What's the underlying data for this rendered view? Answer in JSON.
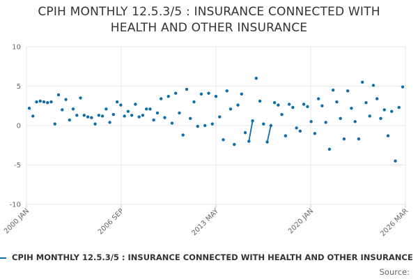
{
  "chart_data": {
    "type": "scatter",
    "title_lines": [
      "CPIH MONTHLY 12.5.3/5 : INSURANCE CONNECTED WITH",
      "HEALTH AND OTHER INSURANCE"
    ],
    "x_ticks": [
      "2000 JAN",
      "2006 SEP",
      "2013 MAY",
      "2020 JAN",
      "2026 MAR"
    ],
    "y_ticks": [
      "10",
      "5",
      "0",
      "-5",
      "-10"
    ],
    "ylim": [
      -10,
      10
    ],
    "grid": true,
    "legend_position": "bottom",
    "series": [
      {
        "name": "CPIH MONTHLY 12.5.3/5 : INSURANCE CONNECTED WITH HEALTH AND OTHER INSURANCE",
        "color": "#0f6da8",
        "values": [
          2.2,
          1.2,
          3.0,
          3.1,
          3.0,
          2.9,
          3.0,
          0.2,
          3.9,
          2.0,
          3.3,
          0.7,
          2.1,
          1.3,
          3.5,
          1.3,
          1.1,
          1.0,
          0.2,
          1.3,
          1.2,
          2.1,
          0.4,
          1.4,
          3.0,
          2.6,
          1.2,
          1.8,
          1.3,
          2.7,
          1.1,
          1.3,
          2.1,
          2.1,
          0.7,
          1.6,
          3.4,
          1.0,
          3.7,
          0.3,
          4.1,
          1.6,
          -1.2,
          4.6,
          0.9,
          3.0,
          -0.1,
          4.0,
          0.0,
          4.1,
          0.2,
          3.7,
          1.1,
          -1.8,
          4.4,
          2.1,
          -2.4,
          2.6,
          4.0,
          -0.9,
          -2.0,
          0.6,
          6.0,
          3.1,
          0.2,
          -2.1,
          0.0,
          2.9,
          2.6,
          1.4,
          -1.3,
          2.7,
          2.3,
          -0.3,
          -0.7,
          2.7,
          2.4,
          0.5,
          -1.0,
          3.4,
          2.5,
          0.4,
          -3.0,
          4.5,
          3.0,
          0.9,
          -1.7,
          4.4,
          2.2,
          0.5,
          -1.7,
          5.5,
          2.9,
          1.2,
          5.1,
          3.4,
          0.9,
          2.0,
          -1.3,
          1.8,
          -4.5,
          2.3,
          4.9
        ]
      }
    ],
    "source_label": "Source:"
  }
}
